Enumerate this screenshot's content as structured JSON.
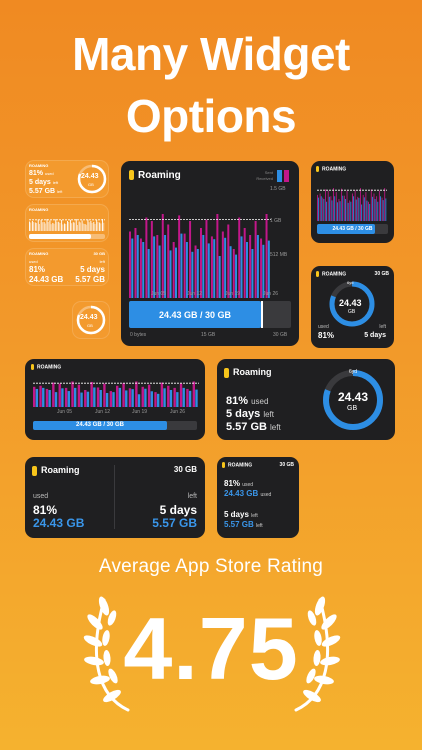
{
  "headline": {
    "line1": "Many Widget",
    "line2": "Options"
  },
  "brand_color": "#f39a2e",
  "accent_blue": "#2d8ee4",
  "accent_magenta": "#c2178a",
  "widgets": {
    "title": "Roaming",
    "title_caps": "ROAMING",
    "usage": "24.43",
    "unit": "GB",
    "usage_full": "24.43 GB",
    "usage_bar": "24.43 GB / 30 GB",
    "total": "30 GB",
    "percent": "81%",
    "percent_used": "81% used",
    "used_word": "used",
    "left_word": "left",
    "days": "5 days",
    "days_left": "5 days left",
    "days_short": "5 days",
    "remaining": "5.57 GB",
    "remaining_left": "5.57 GB left",
    "ring_top": "6yd",
    "large": {
      "legend_sent": "Sent",
      "legend_received": "Received",
      "y_labels": [
        "1.5 GB",
        "1 GB",
        "512 MB"
      ],
      "x_labels": [
        "Jun 05",
        "Jun 12",
        "Jun 19",
        "Jun 26"
      ],
      "bottom_axis": [
        "0 bytes",
        "15 GB",
        "30 GB"
      ]
    },
    "medium_chart": {
      "x_labels": [
        "Jun 05",
        "Jun 12",
        "Jun 19",
        "Jun 26"
      ]
    }
  },
  "chart_data": {
    "type": "bar",
    "categories": [
      "1",
      "2",
      "3",
      "4",
      "5",
      "6",
      "7",
      "8",
      "9",
      "10",
      "11",
      "12",
      "13",
      "14",
      "15",
      "16",
      "17",
      "18",
      "19",
      "20",
      "21",
      "22",
      "23",
      "24",
      "25",
      "26"
    ],
    "series": [
      {
        "name": "Sent",
        "values": [
          0.95,
          1.0,
          0.85,
          1.15,
          1.1,
          0.9,
          1.2,
          1.05,
          0.8,
          1.18,
          0.92,
          1.1,
          0.75,
          1.0,
          1.12,
          0.88,
          1.2,
          0.95,
          1.05,
          0.7,
          1.15,
          1.0,
          0.9,
          1.1,
          0.85,
          1.2
        ]
      },
      {
        "name": "Received",
        "values": [
          0.85,
          0.9,
          0.8,
          0.7,
          0.88,
          0.75,
          0.9,
          0.68,
          0.72,
          0.92,
          0.8,
          0.66,
          0.7,
          0.9,
          0.78,
          0.84,
          0.6,
          0.86,
          0.74,
          0.62,
          0.88,
          0.8,
          0.7,
          0.9,
          0.76,
          0.82
        ]
      }
    ],
    "ylim": [
      0,
      1.6
    ]
  },
  "rating": {
    "label": "Average App Store Rating",
    "value": "4.75"
  }
}
